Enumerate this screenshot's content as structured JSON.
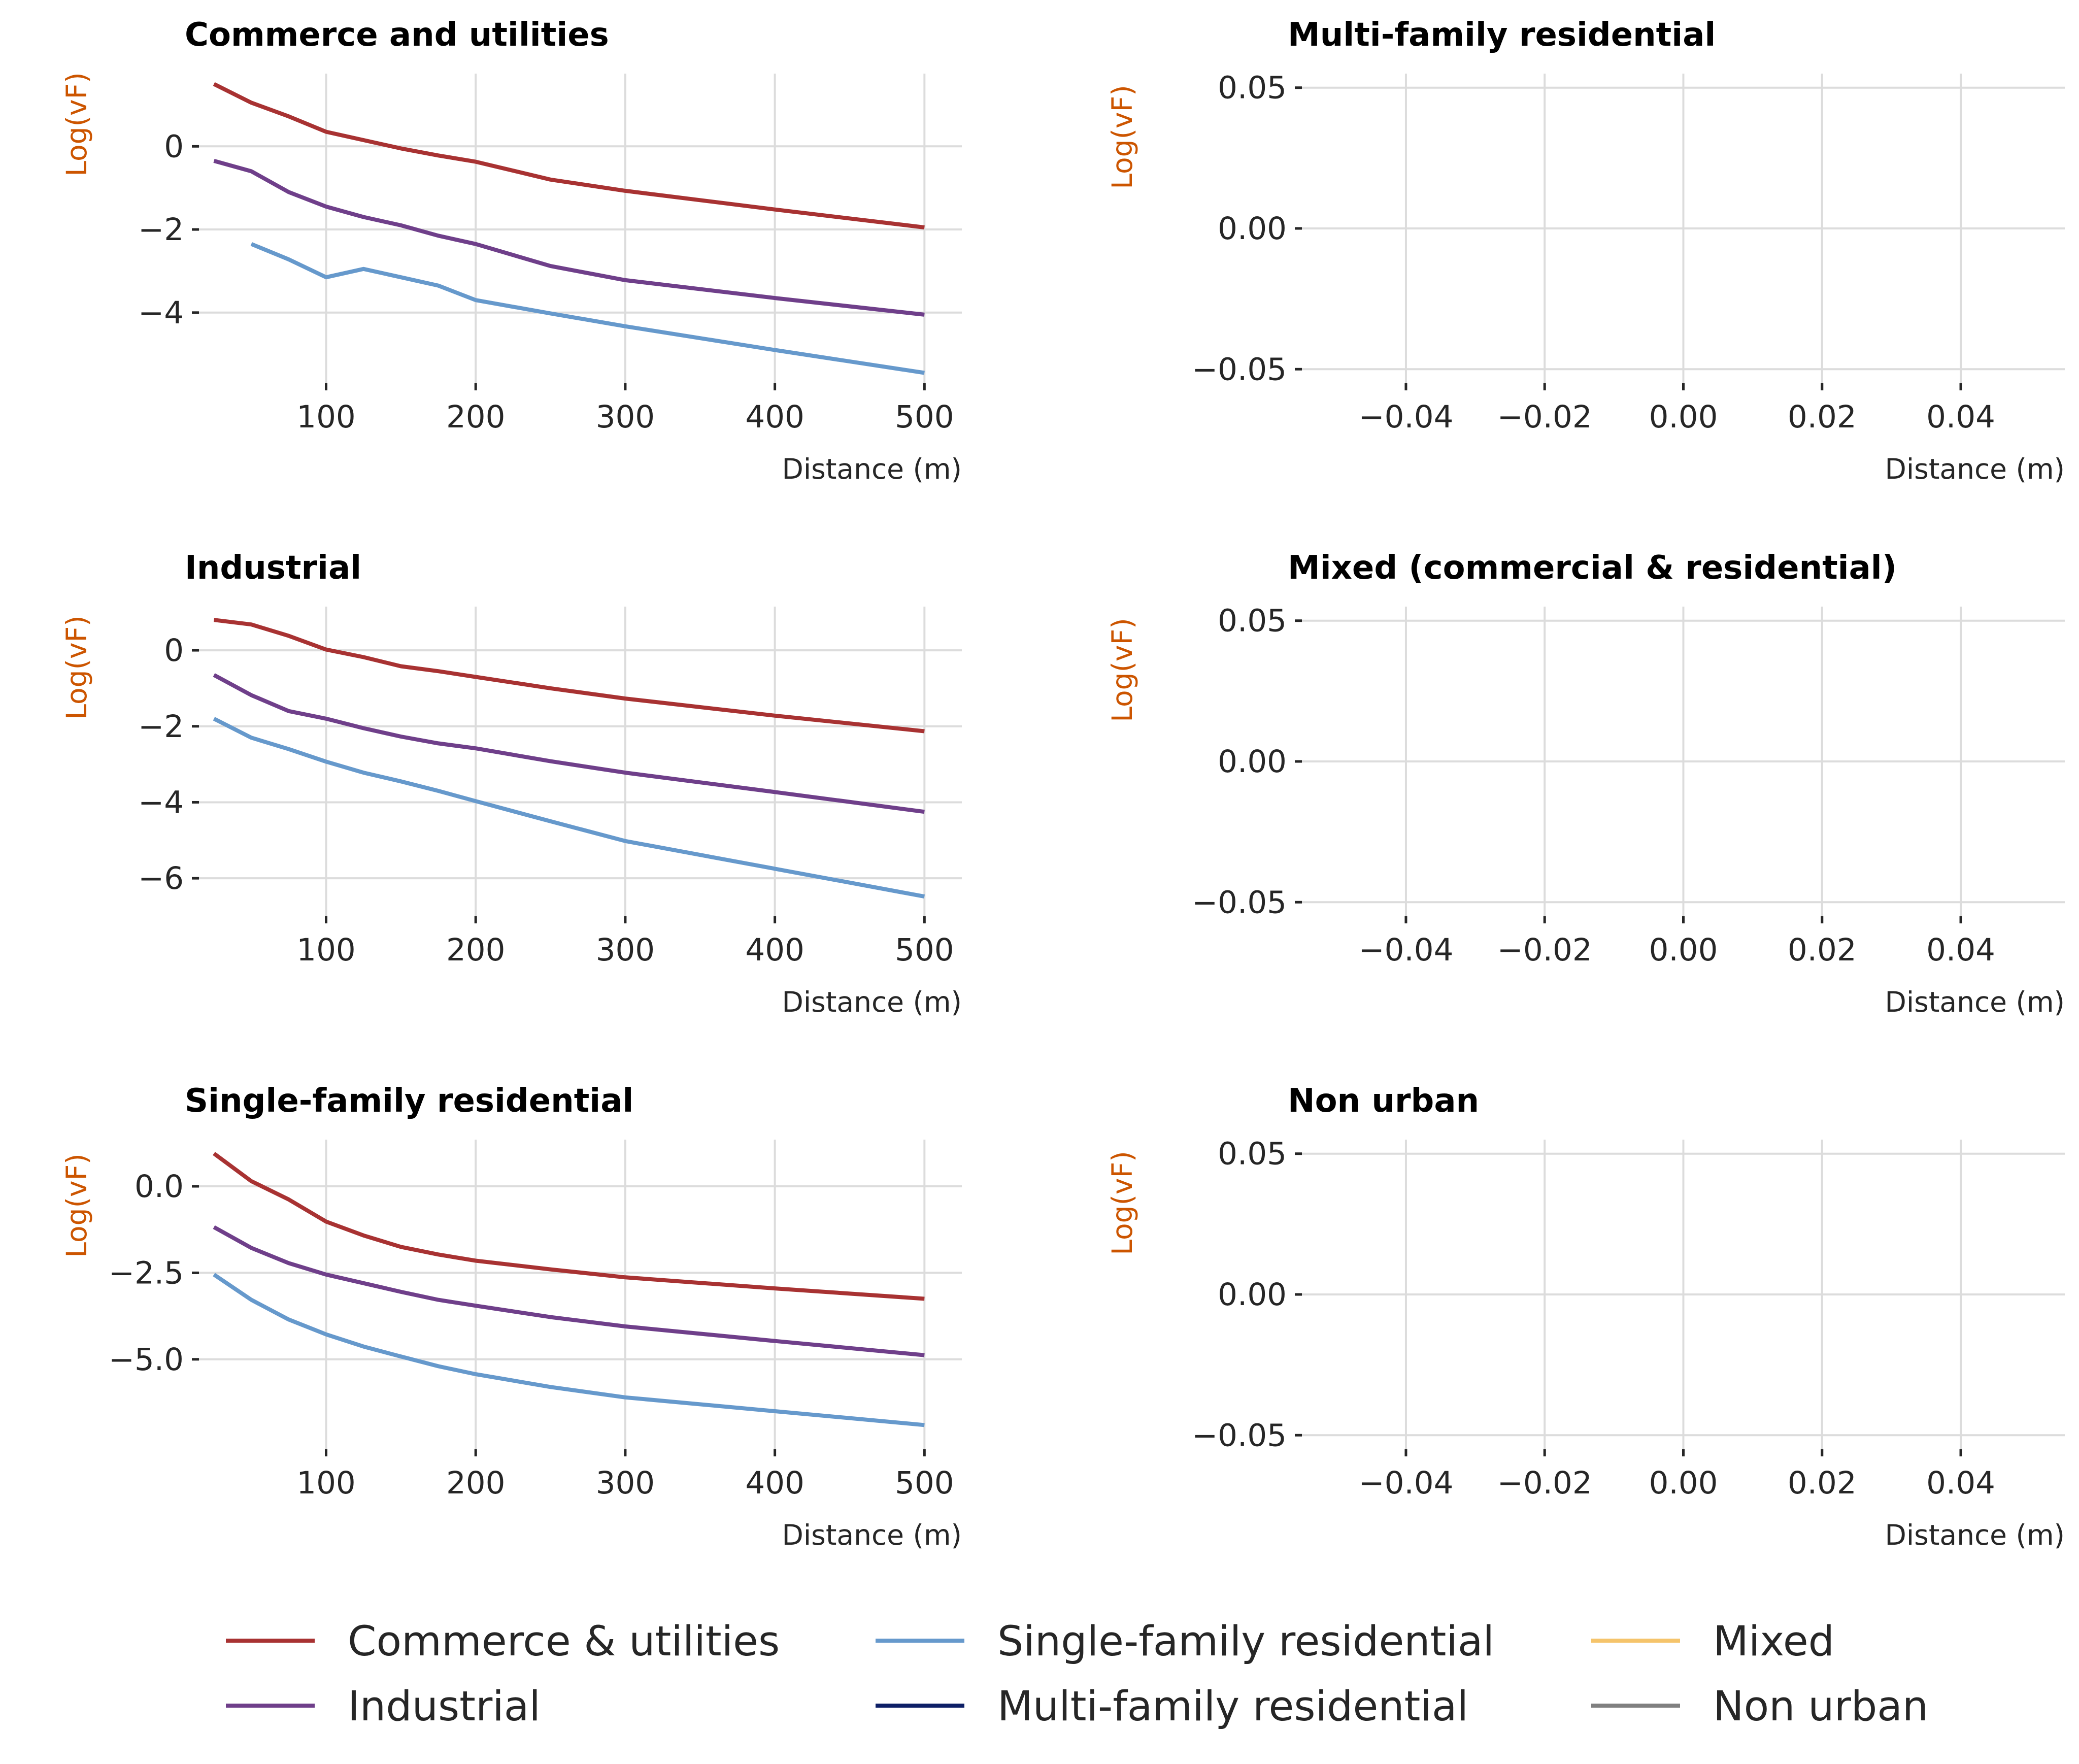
{
  "colors": {
    "ylabel": "#cc5500",
    "grid": "#dcdcdc",
    "text": "#262626"
  },
  "legend": {
    "placement": "bottom",
    "items": [
      {
        "label": "Commerce & utilities",
        "color": "#a83232"
      },
      {
        "label": "Industrial",
        "color": "#6f3f8a"
      },
      {
        "label": "Single-family residential",
        "color": "#6699cc"
      },
      {
        "label": "Multi-family residential",
        "color": "#0d1f66"
      },
      {
        "label": "Mixed",
        "color": "#f5c46b"
      },
      {
        "label": "Non urban",
        "color": "#808080"
      }
    ]
  },
  "chart_data": [
    {
      "type": "line",
      "title": "Commerce and utilities",
      "xlabel": "Distance (m)",
      "ylabel": "Log(vF)",
      "xlim": [
        15,
        525
      ],
      "ylim": [
        -5.7,
        1.75
      ],
      "xticks": [
        100,
        200,
        300,
        400,
        500
      ],
      "xticklabels": [
        "100",
        "200",
        "300",
        "400",
        "500"
      ],
      "yticks": [
        0,
        -2,
        -4
      ],
      "yticklabels": [
        "0",
        "−2",
        "−4"
      ],
      "grid": true,
      "series": [
        {
          "name": "Commerce & utilities",
          "color": "#a83232",
          "x": [
            25,
            50,
            75,
            100,
            125,
            150,
            175,
            200,
            250,
            300,
            400,
            500
          ],
          "y": [
            1.5,
            1.05,
            0.72,
            0.35,
            0.15,
            -0.05,
            -0.22,
            -0.37,
            -0.8,
            -1.07,
            -1.52,
            -1.95
          ]
        },
        {
          "name": "Industrial",
          "color": "#6f3f8a",
          "x": [
            25,
            50,
            75,
            100,
            125,
            150,
            175,
            200,
            250,
            300,
            400,
            500
          ],
          "y": [
            -0.35,
            -0.6,
            -1.1,
            -1.45,
            -1.7,
            -1.9,
            -2.15,
            -2.35,
            -2.88,
            -3.22,
            -3.65,
            -4.05
          ]
        },
        {
          "name": "Single-family residential",
          "color": "#6699cc",
          "x": [
            50,
            75,
            100,
            125,
            150,
            175,
            200,
            250,
            300,
            400,
            500
          ],
          "y": [
            -2.35,
            -2.72,
            -3.15,
            -2.95,
            -3.15,
            -3.35,
            -3.7,
            -4.02,
            -4.33,
            -4.9,
            -5.45
          ]
        }
      ]
    },
    {
      "type": "line",
      "title": "Multi-family residential",
      "xlabel": "Distance (m)",
      "ylabel": "Log(vF)",
      "xlim": [
        -0.055,
        0.055
      ],
      "ylim": [
        -0.055,
        0.055
      ],
      "xticks": [
        -0.04,
        -0.02,
        0.0,
        0.02,
        0.04
      ],
      "xticklabels": [
        "−0.04",
        "−0.02",
        "0.00",
        "0.02",
        "0.04"
      ],
      "yticks": [
        0.05,
        0.0,
        -0.05
      ],
      "yticklabels": [
        "0.05",
        "0.00",
        "−0.05"
      ],
      "grid": true,
      "series": []
    },
    {
      "type": "line",
      "title": "Industrial",
      "xlabel": "Distance (m)",
      "ylabel": "Log(vF)",
      "xlim": [
        15,
        525
      ],
      "ylim": [
        -7.0,
        1.15
      ],
      "xticks": [
        100,
        200,
        300,
        400,
        500
      ],
      "xticklabels": [
        "100",
        "200",
        "300",
        "400",
        "500"
      ],
      "yticks": [
        0,
        -2,
        -4,
        -6
      ],
      "yticklabels": [
        "0",
        "−2",
        "−4",
        "−6"
      ],
      "grid": true,
      "series": [
        {
          "name": "Commerce & utilities",
          "color": "#a83232",
          "x": [
            25,
            50,
            75,
            100,
            125,
            150,
            175,
            200,
            250,
            300,
            400,
            500
          ],
          "y": [
            0.8,
            0.68,
            0.38,
            0.02,
            -0.18,
            -0.42,
            -0.55,
            -0.7,
            -1.0,
            -1.27,
            -1.72,
            -2.13
          ]
        },
        {
          "name": "Industrial",
          "color": "#6f3f8a",
          "x": [
            25,
            50,
            75,
            100,
            125,
            150,
            175,
            200,
            250,
            300,
            400,
            500
          ],
          "y": [
            -0.65,
            -1.18,
            -1.6,
            -1.8,
            -2.05,
            -2.27,
            -2.45,
            -2.58,
            -2.92,
            -3.22,
            -3.73,
            -4.25
          ]
        },
        {
          "name": "Single-family residential",
          "color": "#6699cc",
          "x": [
            25,
            50,
            75,
            100,
            125,
            150,
            175,
            200,
            250,
            300,
            400,
            500
          ],
          "y": [
            -1.8,
            -2.3,
            -2.6,
            -2.93,
            -3.22,
            -3.45,
            -3.7,
            -3.97,
            -4.5,
            -5.02,
            -5.75,
            -6.48
          ]
        }
      ]
    },
    {
      "type": "line",
      "title": "Mixed (commercial & residential)",
      "xlabel": "Distance (m)",
      "ylabel": "Log(vF)",
      "xlim": [
        -0.055,
        0.055
      ],
      "ylim": [
        -0.055,
        0.055
      ],
      "xticks": [
        -0.04,
        -0.02,
        0.0,
        0.02,
        0.04
      ],
      "xticklabels": [
        "−0.04",
        "−0.02",
        "0.00",
        "0.02",
        "0.04"
      ],
      "yticks": [
        0.05,
        0.0,
        -0.05
      ],
      "yticklabels": [
        "0.05",
        "0.00",
        "−0.05"
      ],
      "grid": true,
      "series": []
    },
    {
      "type": "line",
      "title": "Single-family residential",
      "xlabel": "Distance (m)",
      "ylabel": "Log(vF)",
      "xlim": [
        15,
        525
      ],
      "ylim": [
        -7.6,
        1.35
      ],
      "xticks": [
        100,
        200,
        300,
        400,
        500
      ],
      "xticklabels": [
        "100",
        "200",
        "300",
        "400",
        "500"
      ],
      "yticks": [
        0.0,
        -2.5,
        -5.0
      ],
      "yticklabels": [
        "0.0",
        "−2.5",
        "−5.0"
      ],
      "grid": true,
      "series": [
        {
          "name": "Commerce & utilities",
          "color": "#a83232",
          "x": [
            25,
            50,
            75,
            100,
            125,
            150,
            175,
            200,
            250,
            300,
            400,
            500
          ],
          "y": [
            0.95,
            0.15,
            -0.38,
            -1.02,
            -1.42,
            -1.75,
            -1.97,
            -2.15,
            -2.4,
            -2.63,
            -2.95,
            -3.25
          ]
        },
        {
          "name": "Industrial",
          "color": "#6f3f8a",
          "x": [
            25,
            50,
            75,
            100,
            125,
            150,
            175,
            200,
            250,
            300,
            400,
            500
          ],
          "y": [
            -1.18,
            -1.78,
            -2.22,
            -2.55,
            -2.8,
            -3.05,
            -3.28,
            -3.45,
            -3.78,
            -4.05,
            -4.47,
            -4.88
          ]
        },
        {
          "name": "Single-family residential",
          "color": "#6699cc",
          "x": [
            25,
            50,
            75,
            100,
            125,
            150,
            175,
            200,
            250,
            300,
            400,
            500
          ],
          "y": [
            -2.55,
            -3.28,
            -3.85,
            -4.28,
            -4.63,
            -4.92,
            -5.2,
            -5.43,
            -5.8,
            -6.1,
            -6.5,
            -6.9
          ]
        }
      ]
    },
    {
      "type": "line",
      "title": "Non urban",
      "xlabel": "Distance (m)",
      "ylabel": "Log(vF)",
      "xlim": [
        -0.055,
        0.055
      ],
      "ylim": [
        -0.055,
        0.055
      ],
      "xticks": [
        -0.04,
        -0.02,
        0.0,
        0.02,
        0.04
      ],
      "xticklabels": [
        "−0.04",
        "−0.02",
        "0.00",
        "0.02",
        "0.04"
      ],
      "yticks": [
        0.05,
        0.0,
        -0.05
      ],
      "yticklabels": [
        "0.05",
        "0.00",
        "−0.05"
      ],
      "grid": true,
      "series": []
    }
  ]
}
